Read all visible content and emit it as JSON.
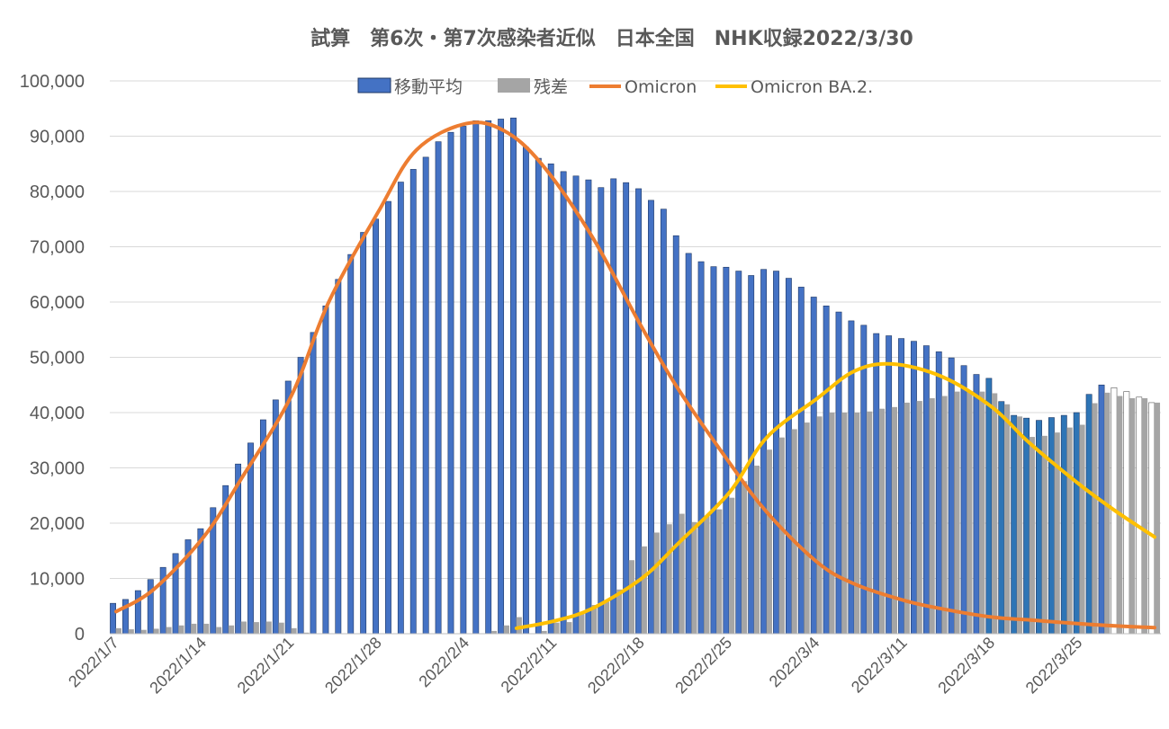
{
  "chart_data": {
    "type": "bar",
    "title": "試算　第6次・第7次感染者近似　日本全国　NHK収録2022/3/30",
    "xlabel": "",
    "ylabel": "",
    "ylim": [
      0,
      100000
    ],
    "yticks": [
      0,
      10000,
      20000,
      30000,
      40000,
      50000,
      60000,
      70000,
      80000,
      90000,
      100000
    ],
    "ytick_labels": [
      "0",
      "10,000",
      "20,000",
      "30,000",
      "40,000",
      "50,000",
      "60,000",
      "70,000",
      "80,000",
      "90,000",
      "100,000"
    ],
    "x_start": "2022/1/7",
    "x_end": "2022/3/31",
    "xtick_labels": [
      "2022/1/7",
      "2022/1/14",
      "2022/1/21",
      "2022/1/28",
      "2022/2/4",
      "2022/2/11",
      "2022/2/18",
      "2022/2/25",
      "2022/3/4",
      "2022/3/11",
      "2022/3/18",
      "2022/3/25"
    ],
    "grid": true,
    "legend_position": "top",
    "colors": {
      "moving_average": "#4472C4",
      "moving_average_stroke": "#1f3864",
      "late_teal": "#2E75B6",
      "projected_fill": "#ffffff",
      "residual": "#A5A5A5",
      "omicron": "#ED7D31",
      "omicron_ba2": "#FFC000"
    },
    "series": [
      {
        "name": "移動平均",
        "kind": "bar",
        "values": [
          5500,
          6200,
          7800,
          9800,
          12000,
          14500,
          17000,
          19000,
          22800,
          26800,
          30700,
          34500,
          38700,
          42300,
          45700,
          50000,
          54500,
          59300,
          64100,
          68600,
          72600,
          75000,
          78200,
          81700,
          84000,
          86200,
          89000,
          90700,
          91800,
          92800,
          92800,
          93100,
          93300,
          88000,
          86000,
          85000,
          83600,
          82800,
          82100,
          80700,
          82300,
          81600,
          80500,
          78400,
          76800,
          72000,
          68800,
          67300,
          66400,
          66300,
          65600,
          64800,
          65900,
          65600,
          64300,
          62700,
          60900,
          59300,
          58200,
          56600,
          55800,
          54300,
          53900,
          53400,
          52900,
          52100,
          51000,
          49900,
          48500,
          46900,
          46200,
          42000,
          39500,
          39000,
          38600,
          39100,
          39500,
          40000,
          43300,
          45000,
          44500,
          43800,
          42800,
          41800
        ]
      },
      {
        "name": "残差",
        "kind": "bar",
        "values": [
          1000,
          800,
          700,
          900,
          1200,
          1500,
          1800,
          1800,
          1200,
          1500,
          2200,
          2100,
          2200,
          2000,
          1000,
          200,
          0,
          0,
          0,
          0,
          0,
          0,
          0,
          0,
          0,
          0,
          0,
          0,
          0,
          0,
          500,
          1500,
          3000,
          0,
          500,
          2000,
          2100,
          3600,
          5200,
          5800,
          8000,
          13300,
          15800,
          18300,
          19800,
          21700,
          20200,
          21300,
          22500,
          24600,
          27600,
          30400,
          33300,
          35500,
          37000,
          38200,
          39300,
          40000,
          40000,
          40000,
          40200,
          40700,
          41000,
          41800,
          42100,
          42600,
          43000,
          43800,
          43800,
          43800,
          43500,
          41500,
          39300,
          35600,
          35800,
          36400,
          37300,
          37800,
          41700,
          43600,
          43000,
          42600,
          42600,
          41800
        ]
      },
      {
        "name": "Omicron",
        "kind": "line",
        "x": [
          "2022/1/7",
          "2022/1/10",
          "2022/1/14",
          "2022/1/17",
          "2022/1/21",
          "2022/1/24",
          "2022/1/28",
          "2022/1/31",
          "2022/2/4",
          "2022/2/7",
          "2022/2/10",
          "2022/2/14",
          "2022/2/18",
          "2022/2/21",
          "2022/2/25",
          "2022/2/28",
          "2022/3/4",
          "2022/3/7",
          "2022/3/11",
          "2022/3/14",
          "2022/3/18",
          "2022/3/21",
          "2022/3/25",
          "2022/3/28",
          "2022/3/31"
        ],
        "values": [
          4000,
          8000,
          17500,
          28000,
          43000,
          60000,
          76500,
          87500,
          92300,
          91000,
          85000,
          72000,
          55500,
          44000,
          31000,
          22000,
          13000,
          9000,
          6000,
          4500,
          3000,
          2500,
          1800,
          1400,
          1100
        ]
      },
      {
        "name": "Omicron BA.2.",
        "kind": "line",
        "x": [
          "2022/2/8",
          "2022/2/11",
          "2022/2/14",
          "2022/2/18",
          "2022/2/21",
          "2022/2/25",
          "2022/2/28",
          "2022/3/4",
          "2022/3/7",
          "2022/3/10",
          "2022/3/14",
          "2022/3/18",
          "2022/3/21",
          "2022/3/25",
          "2022/3/28",
          "2022/3/31"
        ],
        "values": [
          1000,
          2300,
          4500,
          10000,
          16500,
          25500,
          35500,
          42500,
          47500,
          48800,
          46500,
          41000,
          34500,
          27000,
          22000,
          17500
        ]
      }
    ]
  }
}
